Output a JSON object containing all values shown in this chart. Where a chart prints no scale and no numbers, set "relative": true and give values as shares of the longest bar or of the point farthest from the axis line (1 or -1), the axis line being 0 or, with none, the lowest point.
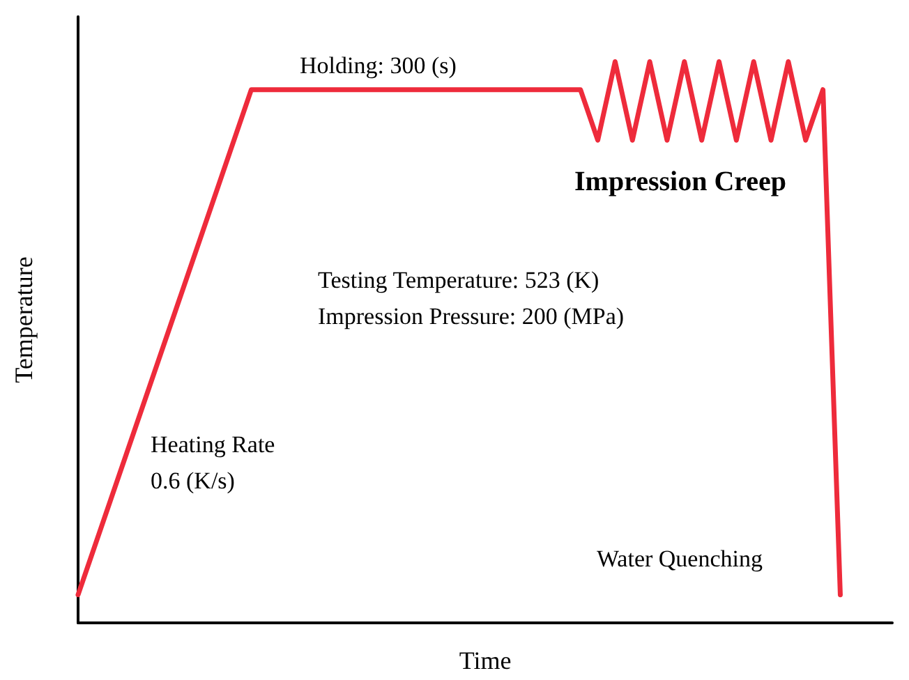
{
  "chart_data": {
    "type": "line",
    "xlabel": "Time",
    "ylabel": "Temperature",
    "relative": true,
    "grid": false,
    "marker": "none",
    "line_style": "solid",
    "categories": [
      null,
      null,
      null,
      null,
      null,
      null,
      null,
      null,
      null,
      null,
      null,
      null,
      null,
      null,
      null,
      null,
      null,
      null,
      null,
      null,
      null,
      null,
      null,
      null,
      null,
      null,
      null,
      null,
      null,
      null,
      null,
      null,
      null,
      null,
      null,
      null,
      null,
      null,
      null,
      null,
      null,
      null,
      null,
      null,
      null,
      null,
      null,
      null
    ],
    "series": [
      {
        "color": "#ee2b3b",
        "values": [
          0.05,
          null,
          null,
          null,
          null,
          null,
          null,
          null,
          null,
          null,
          0.95,
          null,
          null,
          null,
          null,
          null,
          null,
          null,
          null,
          null,
          null,
          null,
          null,
          null,
          null,
          null,
          null,
          null,
          null,
          0.95,
          0.86,
          1,
          0.86,
          1,
          0.86,
          1,
          0.86,
          1,
          0.86,
          1,
          0.86,
          1,
          0.86,
          0.95,
          0.05,
          null,
          null,
          null
        ]
      }
    ],
    "annotations": [
      "Holding: 300 (s)",
      "Impression Creep",
      "Testing Temperature: 523 (K)\nImpression Pressure: 200 (MPa)",
      "Heating Rate\n0.6 (K/s)",
      "Water Quenching"
    ]
  }
}
